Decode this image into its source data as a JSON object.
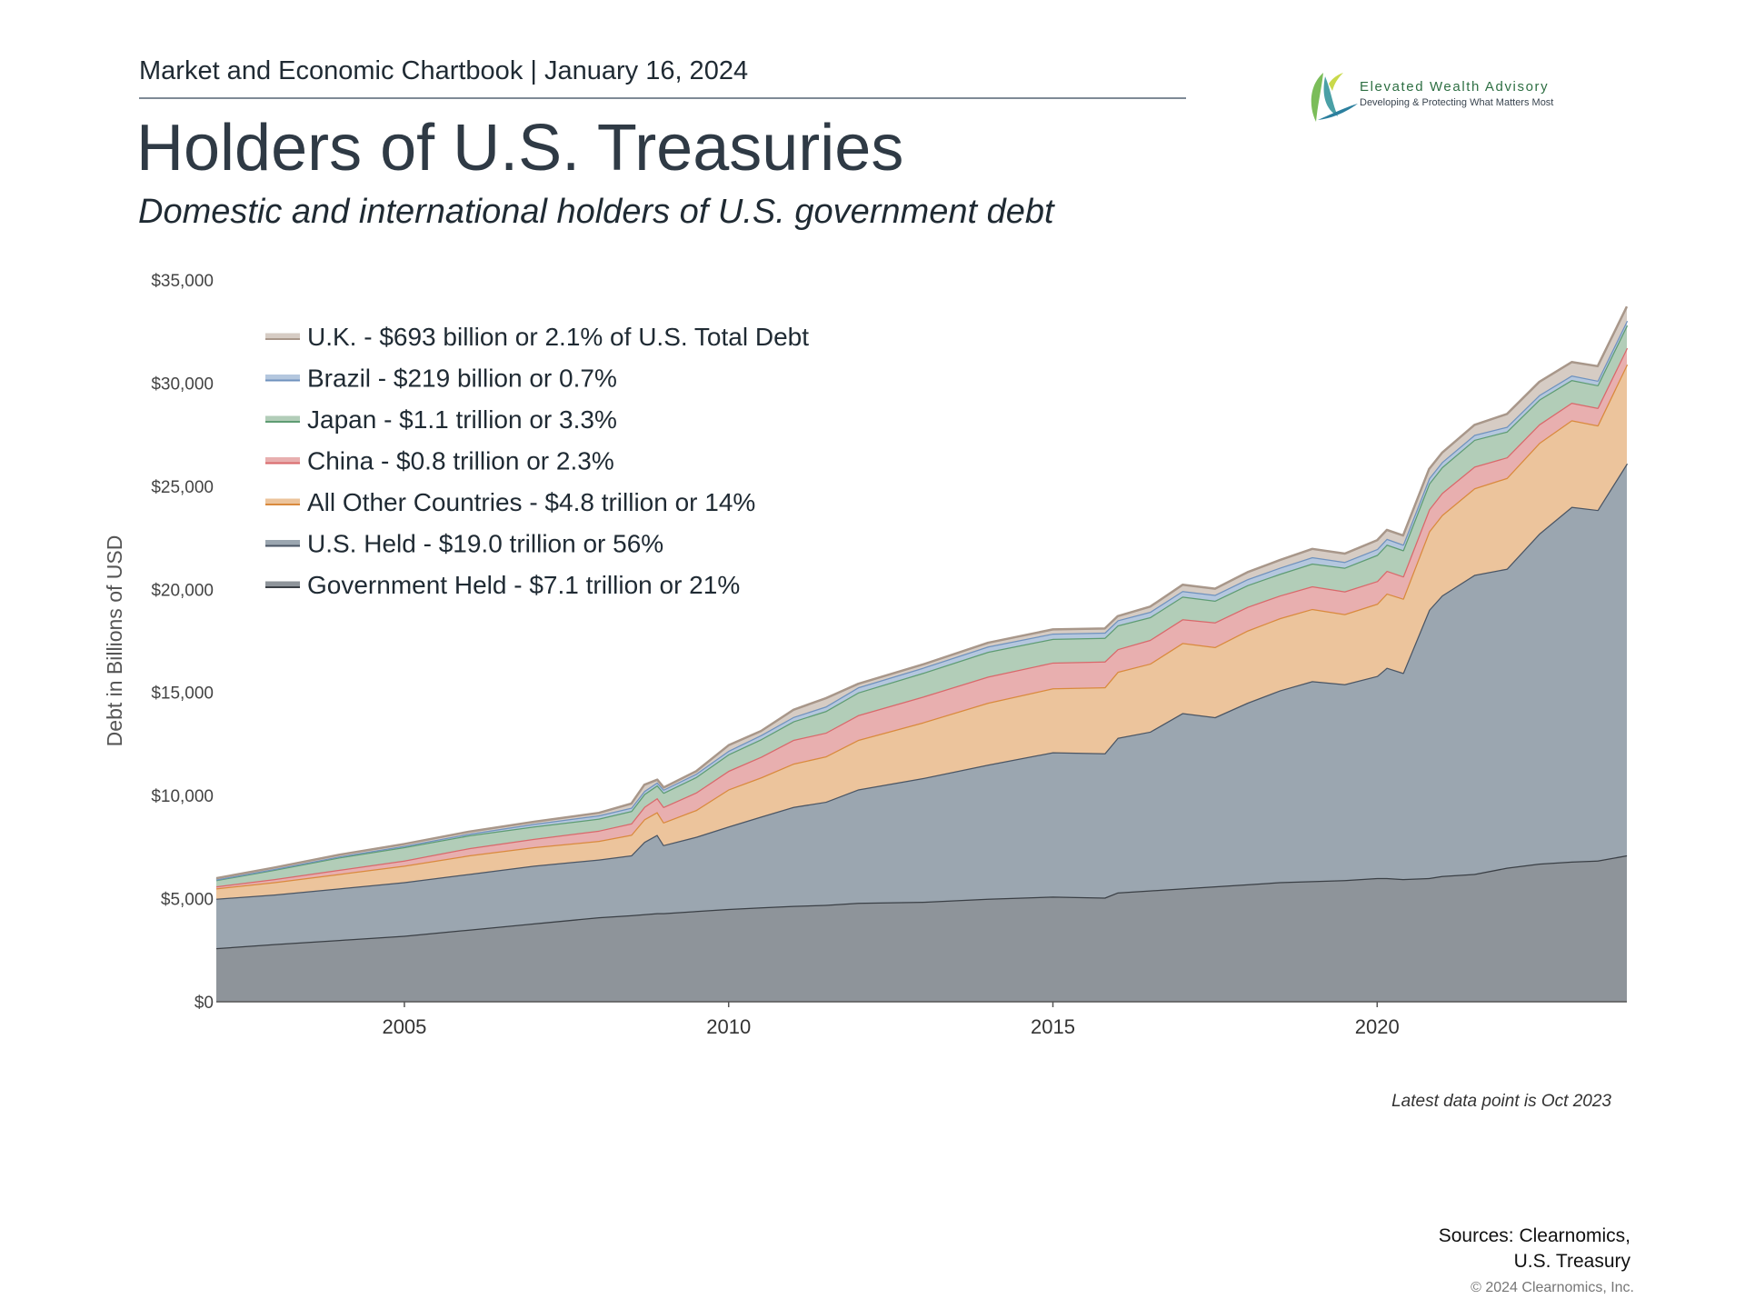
{
  "header": {
    "text": "Market and Economic Chartbook | January 16, 2024"
  },
  "logo": {
    "name": "Elevated Wealth Advisory",
    "tagline": "Developing & Protecting What Matters Most",
    "color": "#2e6f43"
  },
  "title": "Holders of U.S. Treasuries",
  "subtitle": "Domestic and international holders of U.S. government debt",
  "note": "Latest data point is Oct 2023",
  "sources": {
    "line1": "Sources: Clearnomics,",
    "line2": "U.S. Treasury"
  },
  "copyright": "© 2024 Clearnomics, Inc.",
  "chart_data": {
    "type": "area",
    "stacked": true,
    "ylabel": "Debt in Billions of USD",
    "xlabel": "",
    "ylim": [
      0,
      35000
    ],
    "xlim": [
      2002.1,
      2023.85
    ],
    "yticks": [
      0,
      5000,
      10000,
      15000,
      20000,
      25000,
      30000,
      35000
    ],
    "ytick_labels": [
      "$0",
      "$5,000",
      "$10,000",
      "$15,000",
      "$20,000",
      "$25,000",
      "$30,000",
      "$35,000"
    ],
    "xticks": [
      2005,
      2010,
      2015,
      2020
    ],
    "xtick_labels": [
      "2005",
      "2010",
      "2015",
      "2020"
    ],
    "grid": false,
    "legend_position": "top-left",
    "x": [
      2002.1,
      2003,
      2004,
      2005,
      2006,
      2007,
      2008,
      2008.5,
      2008.7,
      2008.9,
      2009,
      2009.5,
      2010,
      2010.5,
      2011,
      2011.5,
      2012,
      2013,
      2014,
      2015,
      2015.8,
      2016,
      2016.5,
      2017,
      2017.5,
      2018,
      2018.5,
      2019,
      2019.5,
      2020,
      2020.15,
      2020.4,
      2020.8,
      2021,
      2021.5,
      2022,
      2022.5,
      2023,
      2023.4,
      2023.85
    ],
    "series": [
      {
        "name": "Government Held - $7.1 trillion or 21%",
        "color": "#3a3f45",
        "fill": "#8e949a",
        "values": [
          2600,
          2800,
          3000,
          3200,
          3500,
          3800,
          4100,
          4200,
          4250,
          4300,
          4300,
          4400,
          4500,
          4580,
          4650,
          4700,
          4800,
          4850,
          5000,
          5100,
          5050,
          5300,
          5400,
          5500,
          5600,
          5700,
          5800,
          5850,
          5900,
          6000,
          6000,
          5950,
          6000,
          6100,
          6200,
          6500,
          6700,
          6800,
          6850,
          7100
        ]
      },
      {
        "name": "U.S. Held - $19.0 trillion or 56%",
        "color": "#4a5564",
        "fill": "#9ba6b0",
        "values": [
          2400,
          2400,
          2500,
          2600,
          2700,
          2800,
          2800,
          2900,
          3500,
          3800,
          3300,
          3600,
          4000,
          4400,
          4800,
          5000,
          5500,
          6000,
          6500,
          7000,
          7000,
          7500,
          7700,
          8500,
          8200,
          8800,
          9300,
          9700,
          9500,
          9800,
          10200,
          10000,
          13000,
          13600,
          14500,
          14500,
          16000,
          17200,
          17000,
          19000
        ]
      },
      {
        "name": "All Other Countries - $4.8 trillion or 14%",
        "color": "#d98a3d",
        "fill": "#ecc49c",
        "values": [
          500,
          600,
          700,
          800,
          900,
          900,
          900,
          1000,
          1100,
          1100,
          1100,
          1300,
          1800,
          1900,
          2100,
          2200,
          2400,
          2700,
          3000,
          3100,
          3200,
          3200,
          3300,
          3400,
          3400,
          3500,
          3500,
          3500,
          3400,
          3500,
          3600,
          3600,
          3800,
          3900,
          4200,
          4400,
          4400,
          4200,
          4100,
          4800
        ]
      },
      {
        "name": "China - $0.8 trillion or 2.3%",
        "color": "#d9686b",
        "fill": "#e8afaf",
        "values": [
          100,
          150,
          200,
          250,
          350,
          400,
          500,
          550,
          600,
          680,
          750,
          850,
          900,
          1000,
          1150,
          1150,
          1200,
          1250,
          1270,
          1250,
          1250,
          1100,
          1150,
          1150,
          1200,
          1150,
          1100,
          1100,
          1100,
          1100,
          1100,
          1080,
          1070,
          1070,
          1050,
          1000,
          900,
          850,
          850,
          800
        ]
      },
      {
        "name": "Japan - $1.1 trillion or 3.3%",
        "color": "#5e9c73",
        "fill": "#b2cdb8",
        "values": [
          300,
          450,
          600,
          650,
          620,
          600,
          580,
          600,
          620,
          620,
          690,
          750,
          800,
          850,
          900,
          1050,
          1100,
          1150,
          1200,
          1150,
          1150,
          1150,
          1100,
          1100,
          1050,
          1050,
          1050,
          1100,
          1150,
          1270,
          1270,
          1270,
          1250,
          1250,
          1300,
          1250,
          1200,
          1100,
          1100,
          1100
        ]
      },
      {
        "name": "Brazil - $219 billion or 0.7%",
        "color": "#6f92be",
        "fill": "#b4c7de",
        "values": [
          30,
          40,
          50,
          60,
          80,
          130,
          160,
          160,
          150,
          140,
          150,
          160,
          170,
          200,
          210,
          220,
          250,
          250,
          260,
          255,
          250,
          250,
          260,
          270,
          280,
          290,
          300,
          310,
          280,
          283,
          283,
          270,
          260,
          250,
          240,
          230,
          220,
          220,
          220,
          219
        ]
      },
      {
        "name": "U.K. - $693 billion or 2.1% of U.S. Total Debt",
        "color": "#a8978a",
        "fill": "#d6ccc4",
        "values": [
          60,
          70,
          80,
          90,
          100,
          100,
          120,
          200,
          300,
          130,
          100,
          120,
          270,
          200,
          350,
          400,
          170,
          160,
          180,
          200,
          200,
          200,
          250,
          300,
          300,
          340,
          370,
          400,
          400,
          430,
          430,
          440,
          450,
          450,
          480,
          620,
          640,
          650,
          700,
          693
        ]
      }
    ]
  }
}
